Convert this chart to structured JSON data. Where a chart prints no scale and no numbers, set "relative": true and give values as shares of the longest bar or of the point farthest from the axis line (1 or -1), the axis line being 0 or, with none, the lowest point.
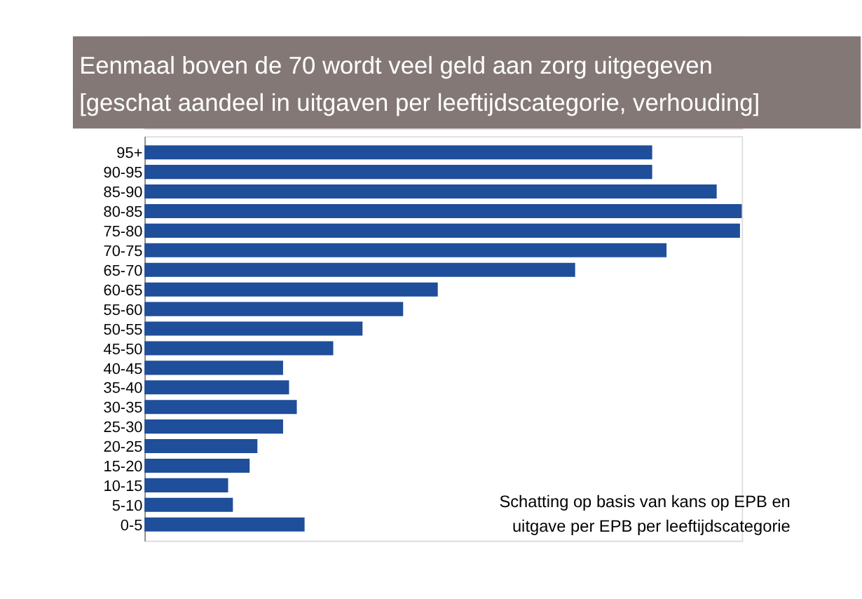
{
  "chart_data": {
    "type": "bar",
    "orientation": "horizontal",
    "relative": true,
    "title": "Eenmaal boven de 70 wordt veel geld aan zorg uitgegeven",
    "subtitle": "[geschat aandeel in uitgaven per leeftijdscategorie, verhouding]",
    "categories": [
      "95+",
      "90-95",
      "85-90",
      "80-85",
      "75-80",
      "70-75",
      "65-70",
      "60-65",
      "55-60",
      "50-55",
      "45-50",
      "40-45",
      "35-40",
      "30-35",
      "25-30",
      "20-25",
      "15-20",
      "10-15",
      "5-10",
      "0-5"
    ],
    "values": [
      0.85,
      0.85,
      0.958,
      1,
      0.997,
      0.874,
      0.721,
      0.491,
      0.433,
      0.365,
      0.316,
      0.232,
      0.242,
      0.255,
      0.232,
      0.189,
      0.176,
      0.14,
      0.148,
      0.268
    ],
    "color": "#1f4e9a",
    "annotations": [
      "Schatting op basis van kans op EPB en\nuitgave per EPB per leeftijdscategorie"
    ],
    "grid": false
  }
}
